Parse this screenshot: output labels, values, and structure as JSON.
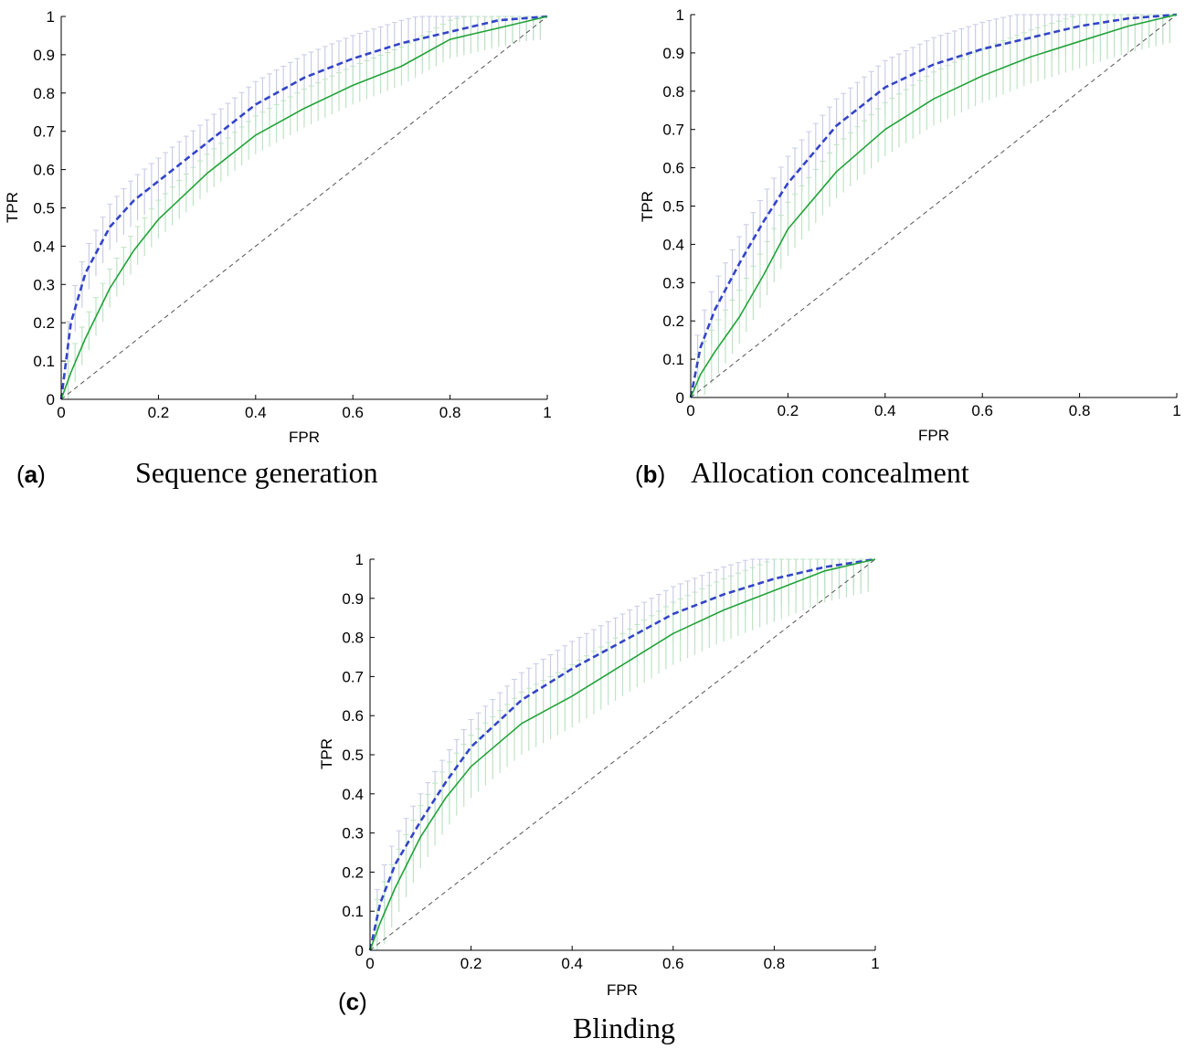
{
  "colors": {
    "svm": "#3344c8",
    "mlp": "#22a33a",
    "svm_band": "#c9cde6",
    "mlp_band": "#bfe3c4",
    "diagonal": "#555555"
  },
  "chart_data": [
    {
      "type": "line",
      "panel_letter": "a",
      "title": "Sequence generation",
      "xlabel": "FPR",
      "ylabel": "TPR",
      "xlim": [
        0,
        1
      ],
      "ylim": [
        0,
        1
      ],
      "xticks": [
        "0",
        "0.2",
        "0.4",
        "0.6",
        "0.8",
        "1"
      ],
      "yticks": [
        "0",
        "0.1",
        "0.2",
        "0.3",
        "0.4",
        "0.5",
        "0.6",
        "0.7",
        "0.8",
        "0.9",
        "1"
      ],
      "series": [
        {
          "style": "dashed",
          "color": "#3344c8",
          "band_width": 0.06,
          "x": [
            0,
            0.02,
            0.05,
            0.1,
            0.15,
            0.2,
            0.3,
            0.4,
            0.5,
            0.6,
            0.7,
            0.8,
            0.9,
            1
          ],
          "y": [
            0,
            0.2,
            0.33,
            0.45,
            0.52,
            0.57,
            0.67,
            0.77,
            0.84,
            0.89,
            0.93,
            0.96,
            0.99,
            1
          ]
        },
        {
          "style": "solid",
          "color": "#22a33a",
          "band_width": 0.05,
          "x": [
            0,
            0.02,
            0.05,
            0.1,
            0.15,
            0.2,
            0.3,
            0.4,
            0.5,
            0.6,
            0.7,
            0.8,
            0.9,
            1
          ],
          "y": [
            0,
            0.07,
            0.16,
            0.29,
            0.39,
            0.47,
            0.59,
            0.69,
            0.76,
            0.82,
            0.87,
            0.94,
            0.97,
            1
          ]
        }
      ],
      "diagonal": true
    },
    {
      "type": "line",
      "panel_letter": "b",
      "title": "Allocation concealment",
      "xlabel": "FPR",
      "ylabel": "TPR",
      "xlim": [
        0,
        1
      ],
      "ylim": [
        0,
        1
      ],
      "xticks": [
        "0",
        "0.2",
        "0.4",
        "0.6",
        "0.8",
        "1"
      ],
      "yticks": [
        "0",
        "0.1",
        "0.2",
        "0.3",
        "0.4",
        "0.5",
        "0.6",
        "0.7",
        "0.8",
        "0.9",
        "1"
      ],
      "series": [
        {
          "style": "dashed",
          "color": "#3344c8",
          "band_width": 0.07,
          "x": [
            0,
            0.02,
            0.05,
            0.1,
            0.15,
            0.2,
            0.3,
            0.4,
            0.5,
            0.6,
            0.7,
            0.8,
            0.9,
            1
          ],
          "y": [
            0,
            0.13,
            0.23,
            0.35,
            0.46,
            0.56,
            0.71,
            0.81,
            0.87,
            0.91,
            0.94,
            0.97,
            0.99,
            1
          ]
        },
        {
          "style": "solid",
          "color": "#22a33a",
          "band_width": 0.07,
          "x": [
            0,
            0.02,
            0.05,
            0.1,
            0.15,
            0.2,
            0.3,
            0.4,
            0.5,
            0.6,
            0.7,
            0.8,
            0.9,
            1
          ],
          "y": [
            0,
            0.06,
            0.12,
            0.21,
            0.32,
            0.44,
            0.59,
            0.7,
            0.78,
            0.84,
            0.89,
            0.93,
            0.97,
            1
          ]
        }
      ],
      "diagonal": true
    },
    {
      "type": "line",
      "panel_letter": "c",
      "title": "Blinding",
      "xlabel": "FPR",
      "ylabel": "TPR",
      "xlim": [
        0,
        1
      ],
      "ylim": [
        0,
        1
      ],
      "xticks": [
        "0",
        "0.2",
        "0.4",
        "0.6",
        "0.8",
        "1"
      ],
      "yticks": [
        "0",
        "0.1",
        "0.2",
        "0.3",
        "0.4",
        "0.5",
        "0.6",
        "0.7",
        "0.8",
        "0.9",
        "1"
      ],
      "series": [
        {
          "style": "dashed",
          "color": "#3344c8",
          "band_width": 0.07,
          "x": [
            0,
            0.02,
            0.05,
            0.1,
            0.15,
            0.2,
            0.3,
            0.4,
            0.5,
            0.6,
            0.7,
            0.8,
            0.9,
            1
          ],
          "y": [
            0,
            0.12,
            0.22,
            0.33,
            0.43,
            0.52,
            0.64,
            0.72,
            0.79,
            0.86,
            0.91,
            0.95,
            0.98,
            1
          ]
        },
        {
          "style": "solid",
          "color": "#22a33a",
          "band_width": 0.08,
          "x": [
            0,
            0.02,
            0.05,
            0.1,
            0.15,
            0.2,
            0.3,
            0.4,
            0.5,
            0.6,
            0.7,
            0.8,
            0.9,
            1
          ],
          "y": [
            0,
            0.07,
            0.16,
            0.29,
            0.39,
            0.47,
            0.58,
            0.65,
            0.73,
            0.81,
            0.87,
            0.92,
            0.97,
            1
          ]
        }
      ],
      "diagonal": true
    }
  ]
}
